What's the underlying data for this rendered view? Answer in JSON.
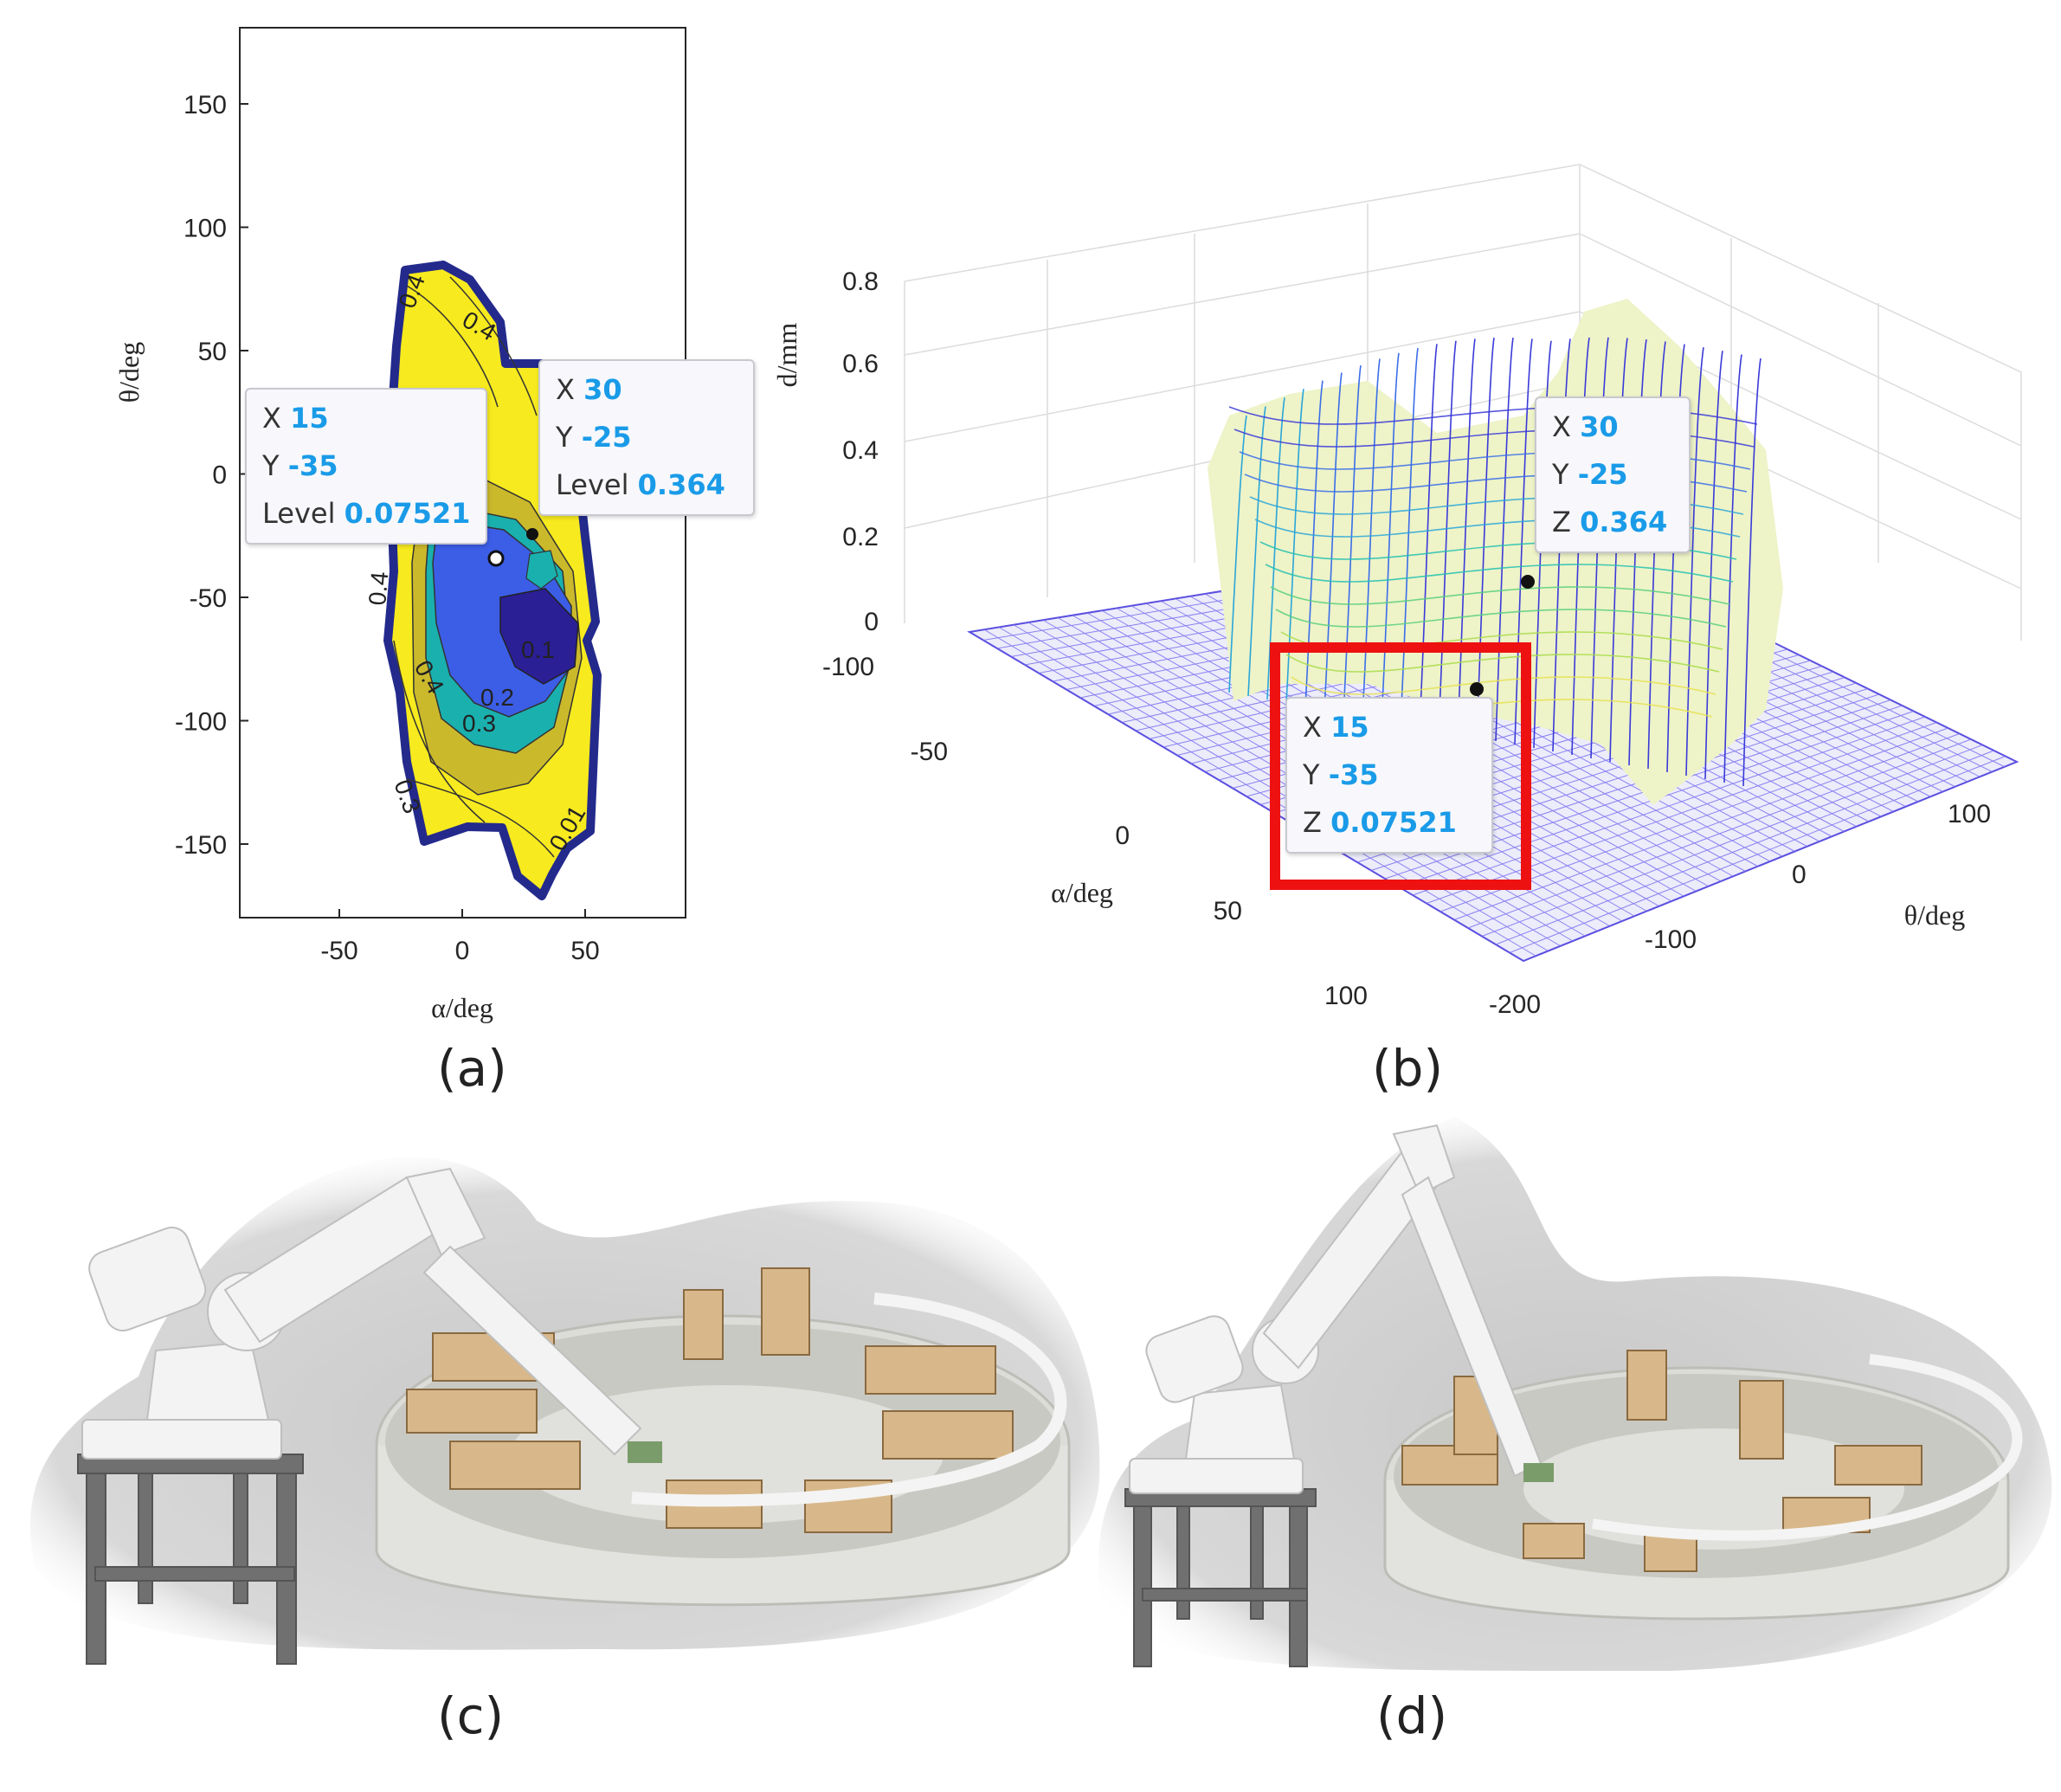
{
  "panels": {
    "a": {
      "caption": "(a)",
      "xlabel": "α/deg",
      "ylabel": "θ/deg",
      "xticks": [
        "-50",
        "0",
        "50"
      ],
      "yticks": [
        "150",
        "100",
        "50",
        "0",
        "-50",
        "-100",
        "-150"
      ],
      "contour_labels": [
        "0.4",
        "0.4",
        "0.4",
        "0.3",
        "0.2",
        "0.1",
        "0.3",
        "0.4",
        "0.01"
      ],
      "tip1": {
        "x_key": "X",
        "x": "15",
        "y_key": "Y",
        "y": "-35",
        "l_key": "Level",
        "l": "0.07521"
      },
      "tip2": {
        "x_key": "X",
        "x": "30",
        "y_key": "Y",
        "y": "-25",
        "l_key": "Level",
        "l": "0.364"
      }
    },
    "b": {
      "caption": "(b)",
      "zlabel": "d/mm",
      "alabel": "α/deg",
      "tlabel": "θ/deg",
      "zticks": [
        "0.8",
        "0.6",
        "0.4",
        "0.2",
        "0"
      ],
      "aticks": [
        "-100",
        "-50",
        "0",
        "50",
        "100"
      ],
      "tticks": [
        "100",
        "0",
        "-100",
        "-200"
      ],
      "tip1": {
        "x_key": "X",
        "x": "30",
        "y_key": "Y",
        "y": "-25",
        "z_key": "Z",
        "z": "0.364"
      },
      "tip2": {
        "x_key": "X",
        "x": "15",
        "y_key": "Y",
        "y": "-35",
        "z_key": "Z",
        "z": "0.07521"
      }
    },
    "c": {
      "caption": "(c)"
    },
    "d": {
      "caption": "(d)"
    }
  },
  "chart_data": [
    {
      "type": "contour",
      "panel": "a",
      "xlabel": "α/deg",
      "ylabel": "θ/deg",
      "xlim": [
        -90,
        90
      ],
      "ylim": [
        -180,
        180
      ],
      "levels": [
        0.01,
        0.1,
        0.2,
        0.3,
        0.4
      ],
      "datatips": [
        {
          "x": 15,
          "y": -35,
          "level": 0.07521
        },
        {
          "x": 30,
          "y": -25,
          "level": 0.364
        }
      ]
    },
    {
      "type": "surface",
      "panel": "b",
      "xlabel": "α/deg",
      "ylabel": "θ/deg",
      "zlabel": "d/mm",
      "xlim": [
        -100,
        100
      ],
      "ylim": [
        -200,
        180
      ],
      "zlim": [
        0,
        0.8
      ],
      "datatips": [
        {
          "x": 30,
          "y": -25,
          "z": 0.364
        },
        {
          "x": 15,
          "y": -35,
          "z": 0.07521
        }
      ]
    }
  ],
  "colors": {
    "yellow": "#f7ea1e",
    "olive": "#cbb92c",
    "teal": "#1ab0ae",
    "blue": "#3c5ee6",
    "navy": "#2a1f95",
    "highlight_box": "#ee1111",
    "datatip_value": "#1a9be8"
  }
}
